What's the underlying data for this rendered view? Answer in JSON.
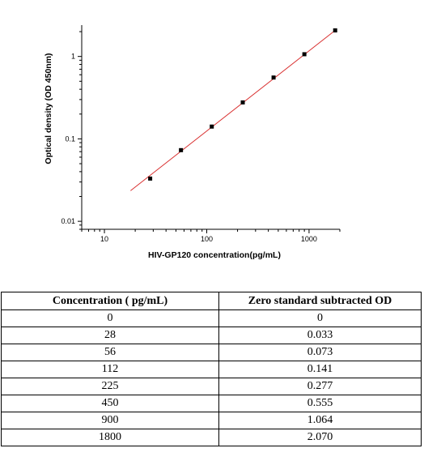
{
  "chart_data": {
    "type": "scatter",
    "title": "",
    "xlabel": "HIV-GP120 concentration(pg/mL)",
    "ylabel": "Optical density (OD 450nm)",
    "xscale": "log",
    "yscale": "log",
    "xlim": [
      6,
      2000
    ],
    "ylim": [
      0.008,
      2.4
    ],
    "x_ticks": [
      10,
      100,
      1000
    ],
    "x_tick_labels": [
      "10",
      "100",
      "1000"
    ],
    "y_ticks": [
      0.01,
      0.1,
      1
    ],
    "y_tick_labels": [
      "0.01",
      "0.1",
      "1"
    ],
    "grid": false,
    "legend": "none",
    "points": {
      "x": [
        28,
        56,
        112,
        225,
        450,
        900,
        1800
      ],
      "y": [
        0.033,
        0.073,
        0.141,
        0.277,
        0.555,
        1.064,
        2.07
      ]
    },
    "fit_line": {
      "x": [
        18,
        1800
      ],
      "y": [
        0.0235,
        2.07
      ],
      "color": "#d93030"
    },
    "marker_color": "#000000"
  },
  "table": {
    "headers": [
      "Concentration ( pg/mL)",
      "Zero standard subtracted OD"
    ],
    "rows": [
      [
        "0",
        "0"
      ],
      [
        "28",
        "0.033"
      ],
      [
        "56",
        "0.073"
      ],
      [
        "112",
        "0.141"
      ],
      [
        "225",
        "0.277"
      ],
      [
        "450",
        "0.555"
      ],
      [
        "900",
        "1.064"
      ],
      [
        "1800",
        "2.070"
      ]
    ]
  }
}
